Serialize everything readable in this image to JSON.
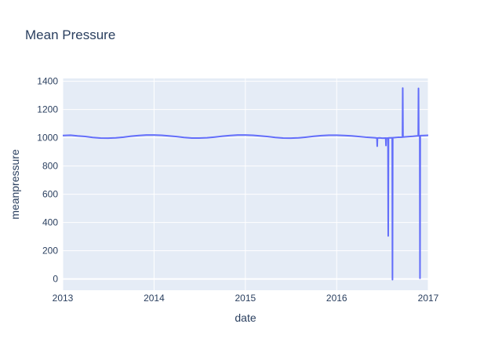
{
  "chart_data": {
    "type": "line",
    "title": "Mean Pressure",
    "xlabel": "date",
    "ylabel": "meanpressure",
    "xlim": [
      "2013-01-01",
      "2017-01-01"
    ],
    "ylim": [
      -80,
      1420
    ],
    "grid": true,
    "legend": "none",
    "colors": {
      "line": "#636efa",
      "plot_bg": "#e5ecf6",
      "grid": "#ffffff",
      "text": "#2a3f5f"
    },
    "x_ticks": [
      {
        "value": "2013-01-01",
        "label": "2013"
      },
      {
        "value": "2014-01-01",
        "label": "2014"
      },
      {
        "value": "2015-01-01",
        "label": "2015"
      },
      {
        "value": "2016-01-01",
        "label": "2016"
      },
      {
        "value": "2017-01-01",
        "label": "2017"
      }
    ],
    "y_ticks": [
      0,
      200,
      400,
      600,
      800,
      1000,
      1200,
      1400
    ],
    "series": [
      {
        "x": [
          "2013-01-01",
          "2013-02-01",
          "2013-03-01",
          "2013-04-01",
          "2013-05-01",
          "2013-06-01",
          "2013-07-01",
          "2013-08-01",
          "2013-09-01",
          "2013-10-01",
          "2013-11-01",
          "2013-12-01",
          "2014-01-01",
          "2014-02-01",
          "2014-03-01",
          "2014-04-01",
          "2014-05-01",
          "2014-06-01",
          "2014-07-01",
          "2014-08-01",
          "2014-09-01",
          "2014-10-01",
          "2014-11-01",
          "2014-12-01",
          "2015-01-01",
          "2015-02-01",
          "2015-03-01",
          "2015-04-01",
          "2015-05-01",
          "2015-06-01",
          "2015-07-01",
          "2015-08-01",
          "2015-09-01",
          "2015-10-01",
          "2015-11-01",
          "2015-12-01",
          "2016-01-01",
          "2016-02-01",
          "2016-03-01",
          "2016-04-01",
          "2016-05-01",
          "2016-06-01",
          "2016-06-10",
          "2016-06-11",
          "2016-06-12",
          "2016-06-20",
          "2016-07-01",
          "2016-07-15",
          "2016-07-16",
          "2016-07-17",
          "2016-07-24",
          "2016-07-25",
          "2016-07-26",
          "2016-07-27",
          "2016-08-01",
          "2016-08-10",
          "2016-08-11",
          "2016-08-12",
          "2016-08-20",
          "2016-09-01",
          "2016-09-20",
          "2016-09-21",
          "2016-09-22",
          "2016-10-01",
          "2016-11-01",
          "2016-11-22",
          "2016-11-23",
          "2016-11-24",
          "2016-11-28",
          "2016-11-29",
          "2016-11-30",
          "2016-12-01",
          "2016-12-15",
          "2017-01-01"
        ],
        "y": [
          1016,
          1018,
          1013,
          1009,
          1002,
          998,
          997,
          999,
          1004,
          1011,
          1016,
          1019,
          1019,
          1017,
          1013,
          1008,
          1002,
          998,
          998,
          1000,
          1005,
          1011,
          1016,
          1019,
          1019,
          1017,
          1013,
          1008,
          1002,
          998,
          997,
          999,
          1004,
          1010,
          1015,
          1018,
          1018,
          1016,
          1013,
          1008,
          1003,
          1000,
          998,
          940,
          998,
          999,
          997,
          998,
          945,
          997,
          998,
          305,
          998,
          999,
          999,
          1000,
          -5,
          1000,
          1001,
          1003,
          1004,
          1352,
          1005,
          1006,
          1010,
          1014,
          1350,
          1013,
          1014,
          5,
          1014,
          1015,
          1016,
          1017
        ]
      }
    ]
  }
}
